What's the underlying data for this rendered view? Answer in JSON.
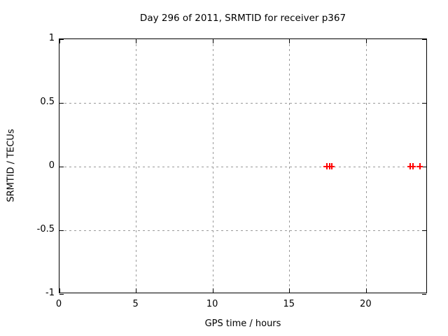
{
  "window": {
    "background": "#ffffff"
  },
  "chart_data": {
    "type": "scatter",
    "title": "Day 296 of 2011, SRMTID for receiver p367",
    "xlabel": "GPS time / hours",
    "ylabel": "SRMTID / TECUs",
    "xlim": [
      0,
      24
    ],
    "ylim": [
      -1,
      1
    ],
    "xticks": [
      0,
      5,
      10,
      15,
      20
    ],
    "yticks": [
      1,
      0.5,
      0,
      -0.5,
      -1
    ],
    "xtick_labels": [
      "0",
      "5",
      "10",
      "15",
      "20"
    ],
    "ytick_labels": [
      "1",
      "0.5",
      "0",
      "-0.5",
      "-1"
    ],
    "grid": true,
    "grid_style": "dashed",
    "legend": "none",
    "series": [
      {
        "name": "SRMTID",
        "marker": "plus",
        "color": "#ff0000",
        "points": [
          {
            "x": 17.45,
            "y": 0
          },
          {
            "x": 17.62,
            "y": 0
          },
          {
            "x": 17.76,
            "y": 0
          },
          {
            "x": 22.9,
            "y": 0
          },
          {
            "x": 23.05,
            "y": 0
          },
          {
            "x": 23.5,
            "y": 0
          }
        ]
      }
    ]
  },
  "colors": {
    "marker": "#ff0000",
    "grid": "#9a9a9a",
    "border": "#000000",
    "text": "#000000",
    "background": "#ffffff"
  }
}
